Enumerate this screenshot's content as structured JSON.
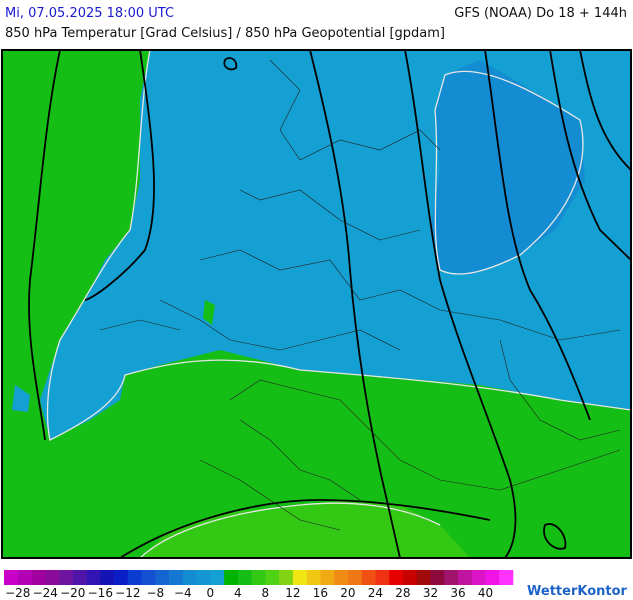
{
  "header": {
    "datetime": "Mi, 07.05.2025 18:00 UTC",
    "model": "GFS (NOAA) Do 18 + 144h",
    "subtitle": "850 hPa Temperatur [Grad Celsius] / 850 hPa Geopotential [gpdam]"
  },
  "colorbar": {
    "colors": [
      "#c800c8",
      "#b400b4",
      "#a000a0",
      "#8c0a9a",
      "#6e14a0",
      "#5014a8",
      "#3214b4",
      "#1414b4",
      "#0a1ec8",
      "#0a3cd2",
      "#1450d2",
      "#1464d2",
      "#1478d2",
      "#148cd2",
      "#1496d2",
      "#14a0d2",
      "#00b400",
      "#14be14",
      "#32c814",
      "#50d214",
      "#82d214",
      "#f0e614",
      "#f0c814",
      "#f0aa14",
      "#f08c14",
      "#f07814",
      "#f05014",
      "#f03214",
      "#e60000",
      "#c80000",
      "#a00a0a",
      "#8c0a3c",
      "#a0146e",
      "#be14a0",
      "#dc14c8",
      "#f014e6",
      "#ff32ff"
    ],
    "labels": [
      "−28",
      "−24",
      "−20",
      "−16",
      "−12",
      "−8",
      "−4",
      "0",
      "4",
      "8",
      "12",
      "16",
      "20",
      "24",
      "28",
      "32",
      "36",
      "40"
    ]
  },
  "logo": "WetterKontor"
}
